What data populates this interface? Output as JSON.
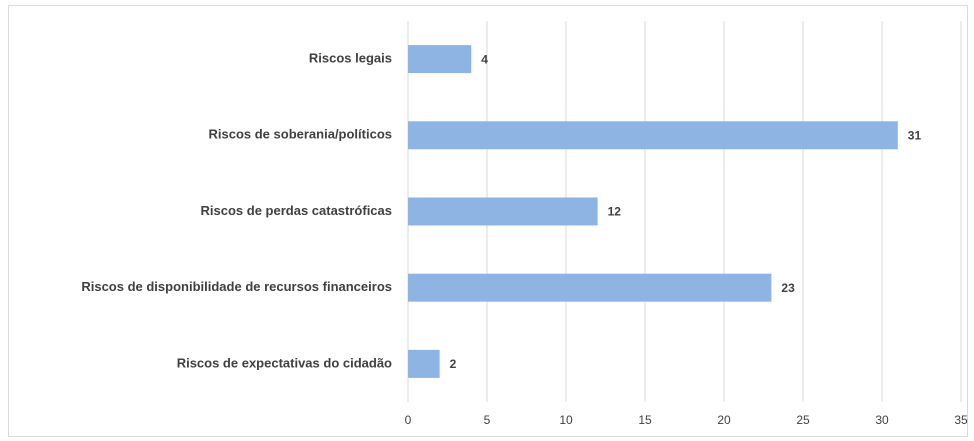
{
  "chart_data": {
    "type": "hbar",
    "categories": [
      "Riscos legais",
      "Riscos de soberania/políticos",
      "Riscos de perdas catastróficas",
      "Riscos de disponibilidade de recursos financeiros",
      "Riscos de expectativas do cidadão"
    ],
    "values": [
      4,
      31,
      12,
      23,
      2
    ],
    "color": "#8eb4e3",
    "xlim": [
      0,
      35
    ],
    "xticks": [
      0,
      5,
      10,
      15,
      20,
      25,
      30,
      35
    ],
    "grid": true
  }
}
